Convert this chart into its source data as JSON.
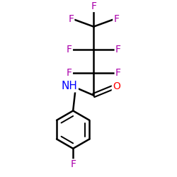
{
  "background_color": "#ffffff",
  "atom_colors": {
    "F": "#aa00aa",
    "O": "#ff0000",
    "N": "#0000ff",
    "C": "#000000",
    "H": "#000000"
  },
  "bond_color": "#000000",
  "bond_width": 1.8,
  "font_size_atom": 10,
  "figsize": [
    2.5,
    2.5
  ],
  "dpi": 100,
  "xlim": [
    0,
    10
  ],
  "ylim": [
    0,
    10
  ]
}
